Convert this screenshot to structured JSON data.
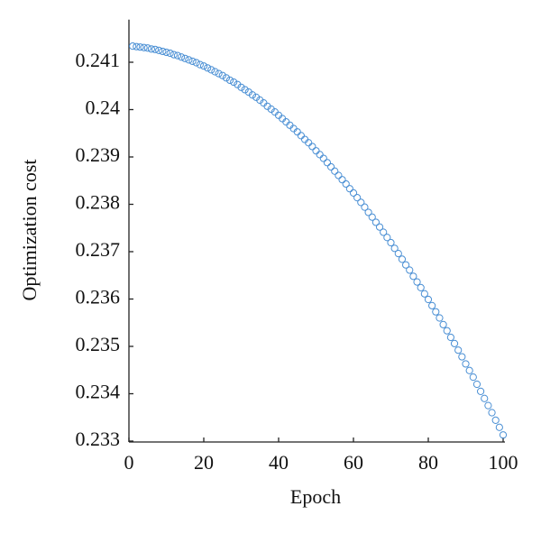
{
  "chart_data": {
    "type": "scatter",
    "x_label": "Epoch",
    "y_label": "Optimization cost",
    "xlim": [
      0,
      100
    ],
    "xticks": [
      0,
      20,
      40,
      60,
      80,
      100
    ],
    "ylim": [
      0.233,
      0.2419
    ],
    "yticks": [
      0.233,
      0.234,
      0.235,
      0.236,
      0.237,
      0.238,
      0.239,
      0.24,
      0.241
    ],
    "series": [
      {
        "color": "#4a8fd4",
        "x": [
          1,
          2,
          3,
          4,
          5,
          6,
          7,
          8,
          9,
          10,
          11,
          12,
          13,
          14,
          15,
          16,
          17,
          18,
          19,
          20,
          21,
          22,
          23,
          24,
          25,
          26,
          27,
          28,
          29,
          30,
          31,
          32,
          33,
          34,
          35,
          36,
          37,
          38,
          39,
          40,
          41,
          42,
          43,
          44,
          45,
          46,
          47,
          48,
          49,
          50,
          51,
          52,
          53,
          54,
          55,
          56,
          57,
          58,
          59,
          60,
          61,
          62,
          63,
          64,
          65,
          66,
          67,
          68,
          69,
          70,
          71,
          72,
          73,
          74,
          75,
          76,
          77,
          78,
          79,
          80,
          81,
          82,
          83,
          84,
          85,
          86,
          87,
          88,
          89,
          90,
          91,
          92,
          93,
          94,
          95,
          96,
          97,
          98,
          99,
          100
        ],
        "values": [
          0.24134,
          0.24133,
          0.24132,
          0.24131,
          0.2413,
          0.24128,
          0.24127,
          0.24125,
          0.24123,
          0.24121,
          0.24119,
          0.24116,
          0.24114,
          0.24111,
          0.24108,
          0.24105,
          0.24102,
          0.24099,
          0.24095,
          0.24092,
          0.24088,
          0.24084,
          0.2408,
          0.24076,
          0.24072,
          0.24067,
          0.24062,
          0.24058,
          0.24053,
          0.24047,
          0.24042,
          0.24037,
          0.24031,
          0.24026,
          0.2402,
          0.24014,
          0.24007,
          0.24001,
          0.23995,
          0.23988,
          0.23981,
          0.23974,
          0.23967,
          0.2396,
          0.23953,
          0.23945,
          0.23937,
          0.2393,
          0.23922,
          0.23913,
          0.23905,
          0.23897,
          0.23888,
          0.23879,
          0.2387,
          0.23861,
          0.23852,
          0.23843,
          0.23833,
          0.23824,
          0.23814,
          0.23804,
          0.23794,
          0.23783,
          0.23773,
          0.23762,
          0.23752,
          0.23741,
          0.2373,
          0.23719,
          0.23707,
          0.23696,
          0.23684,
          0.23672,
          0.23661,
          0.23648,
          0.23636,
          0.23624,
          0.23611,
          0.23599,
          0.23586,
          0.23573,
          0.2356,
          0.23546,
          0.23533,
          0.23519,
          0.23506,
          0.23492,
          0.23478,
          0.23463,
          0.23449,
          0.23435,
          0.2342,
          0.23405,
          0.2339,
          0.23375,
          0.2336,
          0.23344,
          0.23329,
          0.23313
        ]
      }
    ]
  }
}
